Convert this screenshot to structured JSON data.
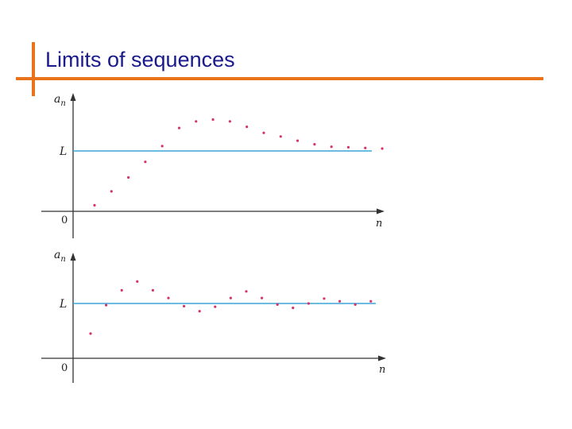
{
  "slide": {
    "title": "Limits of sequences"
  },
  "colors": {
    "accent": "#e8731b",
    "title_text": "#1a1a8c",
    "limit_line": "#3aa6d4",
    "points": "#d6336c",
    "axes": "#333333"
  },
  "graphs": [
    {
      "y_axis_label": "a",
      "y_axis_subscript": "n",
      "x_axis_label": "n",
      "origin_label": "0",
      "limit_label": "L",
      "limit_value": 1,
      "points": [
        0.1,
        0.33,
        0.56,
        0.82,
        1.08,
        1.38,
        1.49,
        1.52,
        1.49,
        1.4,
        1.3,
        1.24,
        1.17,
        1.11,
        1.07,
        1.06,
        1.05,
        1.04
      ]
    },
    {
      "y_axis_label": "a",
      "y_axis_subscript": "n",
      "x_axis_label": "n",
      "origin_label": "0",
      "limit_label": "L",
      "limit_value": 1,
      "points": [
        0.45,
        0.97,
        1.24,
        1.4,
        1.24,
        1.1,
        0.95,
        0.86,
        0.94,
        1.1,
        1.22,
        1.1,
        0.98,
        0.92,
        1.0,
        1.09,
        1.04,
        0.98,
        1.04
      ]
    }
  ]
}
